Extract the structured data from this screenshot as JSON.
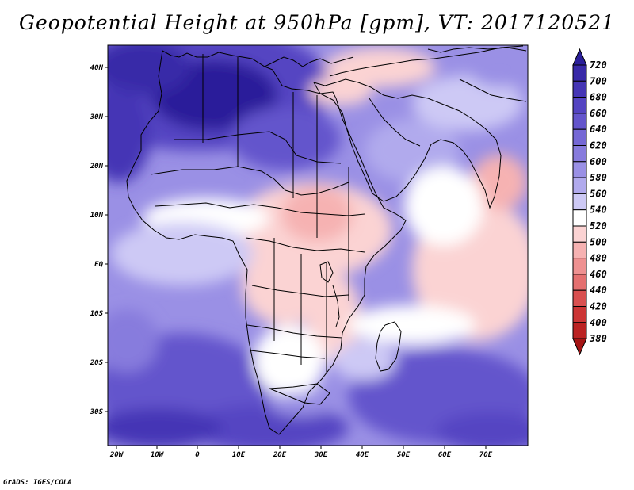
{
  "title": "Geopotential Height at 950hPa [gpm], VT: 2017120521",
  "credit": "GrADS: IGES/COLA",
  "map": {
    "lon_labels": [
      "20W",
      "10W",
      "0",
      "10E",
      "20E",
      "30E",
      "40E",
      "50E",
      "60E",
      "70E"
    ],
    "lat_labels": [
      "40N",
      "30N",
      "20N",
      "10N",
      "EQ",
      "10S",
      "20S",
      "30S"
    ]
  },
  "colorbar": {
    "levels": [
      "720",
      "700",
      "680",
      "660",
      "640",
      "620",
      "600",
      "580",
      "560",
      "540",
      "520",
      "500",
      "480",
      "460",
      "440",
      "420",
      "400",
      "380"
    ],
    "colors": [
      "#2b1f9a",
      "#3829a8",
      "#4535b5",
      "#5444c2",
      "#6455cc",
      "#7568d5",
      "#877bdd",
      "#9a90e5",
      "#b1aaed",
      "#cdc9f5",
      "#ffffff",
      "#fbd3d3",
      "#f6b2b2",
      "#ee9191",
      "#e47070",
      "#d95050",
      "#cc3535",
      "#bb2222",
      "#a51414"
    ]
  }
}
